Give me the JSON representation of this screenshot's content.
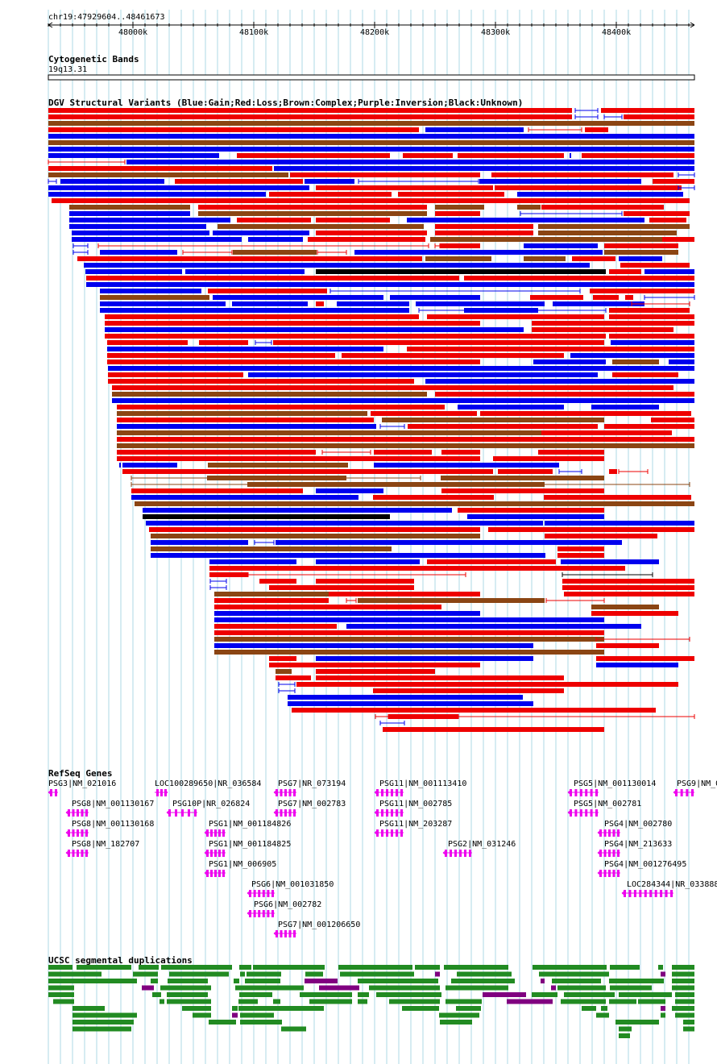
{
  "coords": "chr19:47929604..48461673",
  "ruler_ticks": [
    "48000k",
    "48100k",
    "48200k",
    "48300k",
    "48400k"
  ],
  "tracks": {
    "cytoband": {
      "title": "Cytogenetic Bands",
      "band": "19q13.31"
    },
    "dgv": {
      "title": "DGV Structural Variants (Blue:Gain;Red:Loss;Brown:Complex;Purple:Inversion;Black:Unknown)"
    },
    "refseq": {
      "title": "RefSeq Genes"
    },
    "segdup": {
      "title": "UCSC segmental duplications"
    }
  },
  "genes": [
    {
      "label": "PSG3|NM_021016"
    },
    {
      "label": "LOC100289650|NR_036584"
    },
    {
      "label": "PSG7|NR_073194"
    },
    {
      "label": "PSG11|NM_001113410"
    },
    {
      "label": "PSG5|NM_001130014"
    },
    {
      "label": "PSG9|NM_0"
    },
    {
      "label": "PSG8|NM_001130167"
    },
    {
      "label": "PSG10P|NR_026824"
    },
    {
      "label": "PSG7|NM_002783"
    },
    {
      "label": "PSG11|NM_002785"
    },
    {
      "label": "PSG5|NM_002781"
    },
    {
      "label": "PSG8|NM_001130168"
    },
    {
      "label": "PSG1|NM_001184826"
    },
    {
      "label": "PSG11|NM_203287"
    },
    {
      "label": "PSG4|NM_002780"
    },
    {
      "label": "PSG8|NM_182707"
    },
    {
      "label": "PSG1|NM_001184825"
    },
    {
      "label": "PSG2|NM_031246"
    },
    {
      "label": "PSG4|NM_213633"
    },
    {
      "label": "PSG1|NM_006905"
    },
    {
      "label": "PSG4|NM_001276495"
    },
    {
      "label": "PSG6|NM_001031850"
    },
    {
      "label": "LOC284344|NR_033888"
    },
    {
      "label": "PSG6|NM_002782"
    },
    {
      "label": "PSG7|NM_001206650"
    }
  ],
  "colors": {
    "gain": "#0000ee",
    "loss": "#ee0000",
    "complex": "#8b4513",
    "inversion": "#800080",
    "unknown": "#000000",
    "gene": "#ee00ee",
    "segdup_green": "#228b22",
    "segdup_purple": "#800080",
    "grid": "#add8e6"
  }
}
